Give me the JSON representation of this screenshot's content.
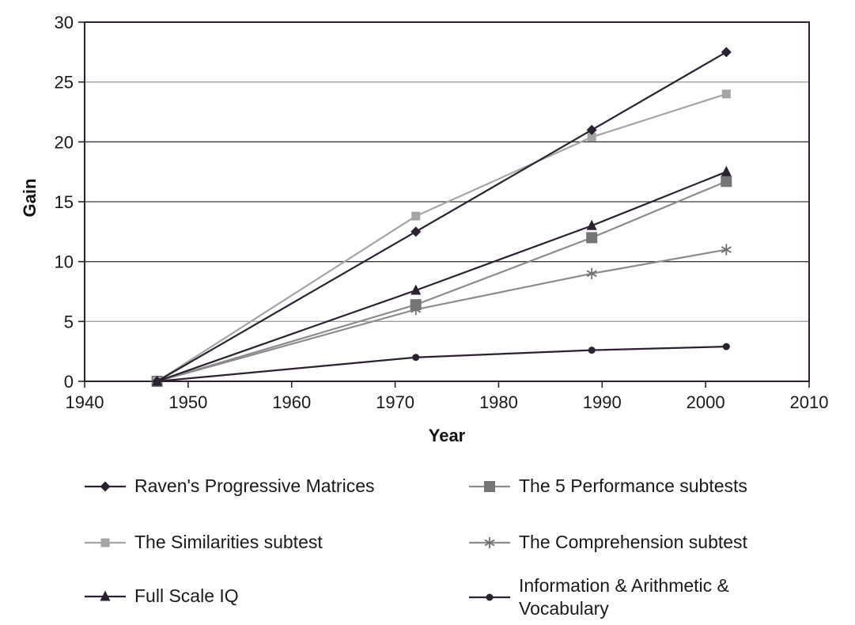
{
  "chart_data": {
    "type": "line",
    "title": "",
    "xlabel": "Year",
    "ylabel": "Gain",
    "x": [
      1947,
      1972,
      1989,
      2002
    ],
    "xlim": [
      1940,
      2010
    ],
    "ylim": [
      0,
      30
    ],
    "xticks": [
      1940,
      1950,
      1960,
      1970,
      1980,
      1990,
      2000,
      2010
    ],
    "yticks": [
      0,
      5,
      10,
      15,
      20,
      25,
      30
    ],
    "grid": "horizontal gridlines at every 5 units",
    "legend_position": "bottom, two columns",
    "series": [
      {
        "name": "Raven's Progressive Matrices",
        "marker": "diamond",
        "marker_size": 13,
        "color": "#2b2130",
        "line_color": "#2b2130",
        "values": [
          0,
          12.5,
          21,
          27.5
        ]
      },
      {
        "name": "The 5 Performance subtests",
        "marker": "square",
        "marker_size": 14,
        "color": "#757575",
        "line_color": "#8c8c8c",
        "values": [
          0,
          6.4,
          12,
          16.7
        ]
      },
      {
        "name": "The Similarities subtest",
        "marker": "square",
        "marker_size": 11,
        "color": "#a5a5a5",
        "line_color": "#a5a5a5",
        "values": [
          0,
          13.8,
          20.4,
          24
        ]
      },
      {
        "name": "The Comprehension subtest",
        "marker": "asterisk",
        "marker_size": 14,
        "color": "#6e6e6e",
        "line_color": "#8c8c8c",
        "values": [
          0,
          6,
          9,
          11
        ]
      },
      {
        "name": "Full Scale IQ",
        "marker": "triangle",
        "marker_size": 13,
        "color": "#2b2130",
        "line_color": "#2b2130",
        "values": [
          0,
          7.6,
          13,
          17.5
        ]
      },
      {
        "name": "Information & Arithmetic & Vocabulary",
        "marker": "circle",
        "marker_size": 9,
        "color": "#2b2130",
        "line_color": "#2b2130",
        "values": [
          0,
          2,
          2.6,
          2.9
        ]
      }
    ],
    "draw_order": [
      3,
      1,
      2,
      0,
      4,
      5
    ],
    "grid_colors": {
      "5": "#a0a0a0",
      "10": "#3c3c3c",
      "15": "#3c3c3c",
      "20": "#3c3c3c",
      "25": "#a0a0a0"
    },
    "frame_color": "#2b2130",
    "text_color": "#1a1a1a"
  }
}
